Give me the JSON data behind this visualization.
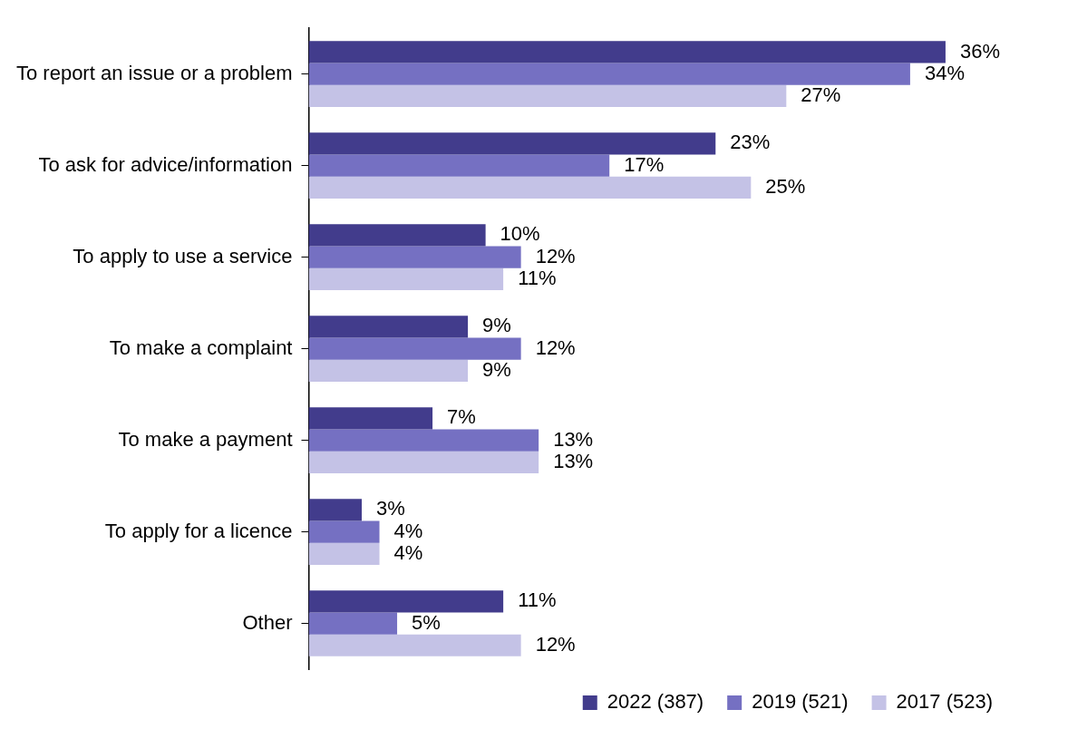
{
  "chart_data": {
    "type": "bar",
    "orientation": "horizontal",
    "categories": [
      "To report an issue or a problem",
      "To ask for advice/information",
      "To apply to use a service",
      "To make a complaint",
      "To make a payment",
      "To apply for a licence",
      "Other"
    ],
    "series": [
      {
        "name": "2022 (387)",
        "color": "#423c8c",
        "values": [
          36,
          23,
          10,
          9,
          7,
          3,
          11
        ],
        "value_labels": [
          "36%",
          "23%",
          "10%",
          "9%",
          "7%",
          "3%",
          "11%"
        ]
      },
      {
        "name": "2019 (521)",
        "color": "#7570c2",
        "values": [
          34,
          17,
          12,
          12,
          13,
          4,
          5
        ],
        "value_labels": [
          "34%",
          "17%",
          "12%",
          "12%",
          "13%",
          "4%",
          "5%"
        ]
      },
      {
        "name": "2017 (523)",
        "color": "#c4c2e6",
        "values": [
          27,
          25,
          11,
          9,
          13,
          4,
          12
        ],
        "value_labels": [
          "27%",
          "25%",
          "11%",
          "9%",
          "13%",
          "4%",
          "12%"
        ]
      }
    ],
    "legend": "bottom right",
    "grid": false
  }
}
